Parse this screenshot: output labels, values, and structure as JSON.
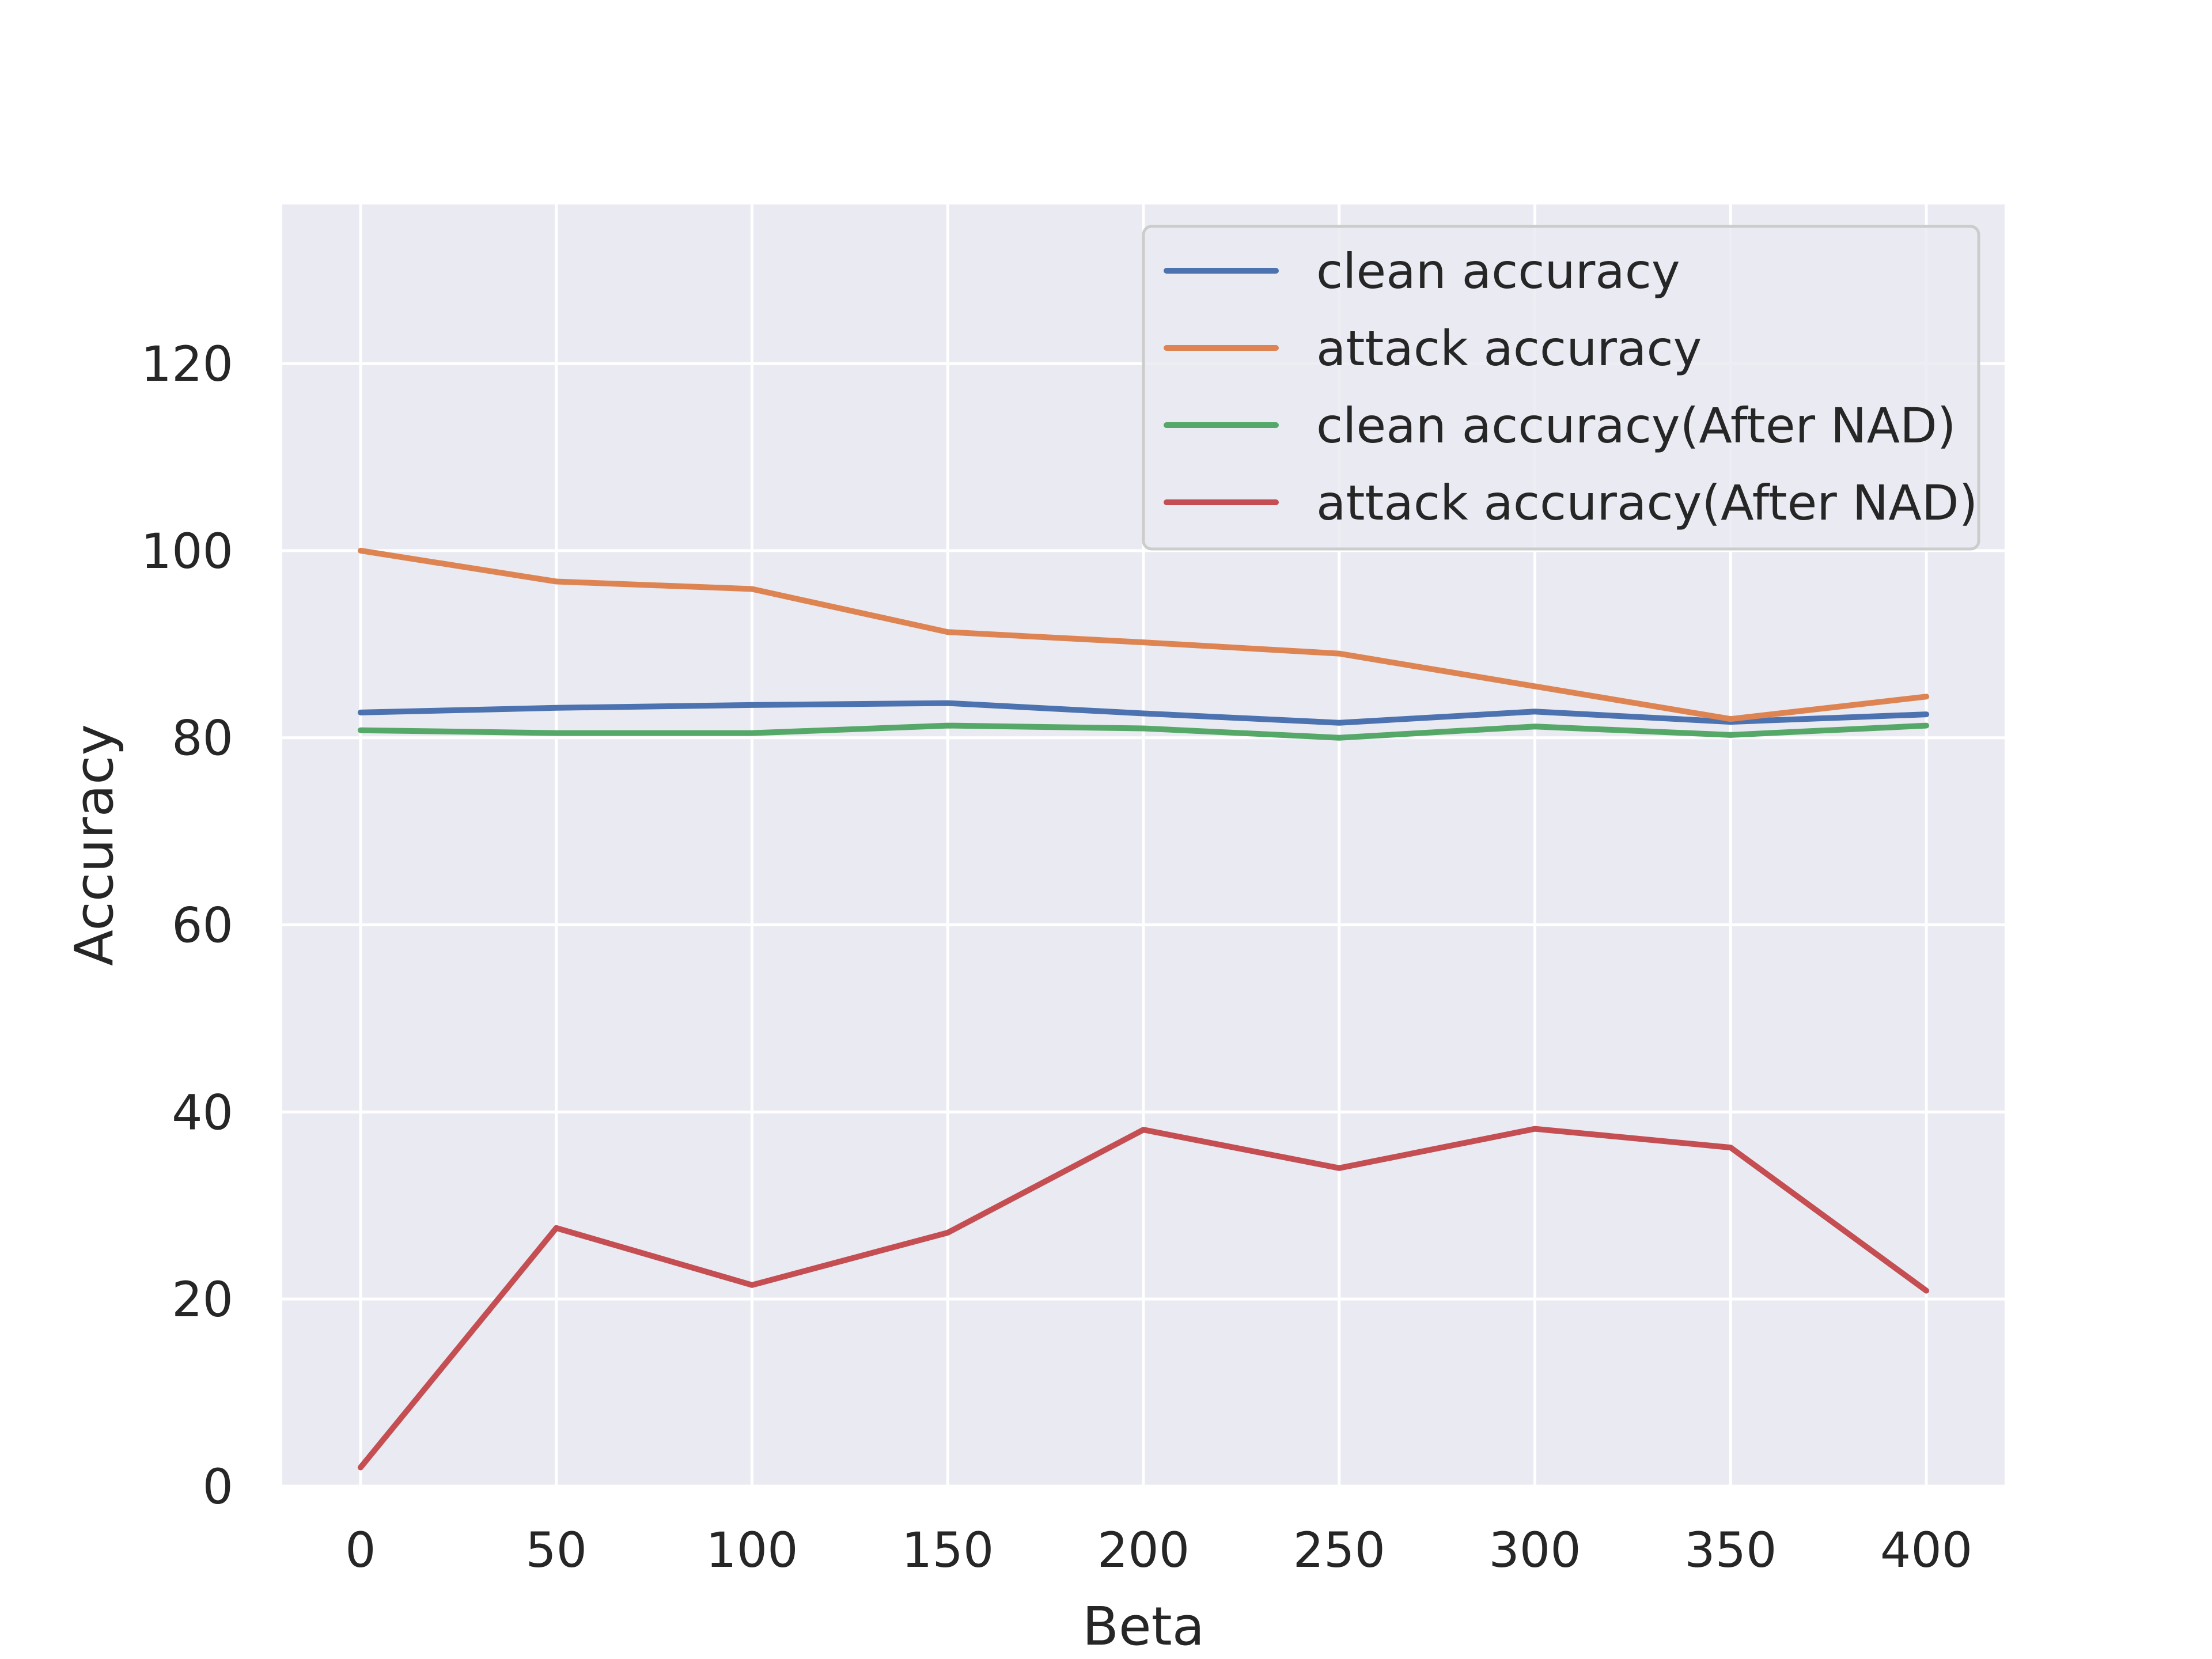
{
  "chart_data": {
    "type": "line",
    "xlabel": "Beta",
    "ylabel": "Accuracy",
    "x": [
      0,
      50,
      100,
      150,
      200,
      250,
      300,
      350,
      400
    ],
    "xlim": [
      -20,
      420
    ],
    "ylim": [
      0,
      137
    ],
    "xticks": [
      "0",
      "50",
      "100",
      "150",
      "200",
      "250",
      "300",
      "350",
      "400"
    ],
    "yticks": [
      "0",
      "20",
      "40",
      "60",
      "80",
      "100",
      "120"
    ],
    "grid": true,
    "legend_position": "top-right",
    "series": [
      {
        "name": "clean accuracy",
        "color": "#4c72b0",
        "values": [
          82.7,
          83.2,
          83.5,
          83.7,
          82.6,
          81.6,
          82.8,
          81.7,
          82.5
        ]
      },
      {
        "name": "attack accuracy",
        "color": "#dd8452",
        "values": [
          100.0,
          96.7,
          95.9,
          91.3,
          90.2,
          89.0,
          85.5,
          82.0,
          84.4
        ]
      },
      {
        "name": "clean accuracy(After NAD)",
        "color": "#55a868",
        "values": [
          80.8,
          80.5,
          80.5,
          81.3,
          81.0,
          80.0,
          81.2,
          80.3,
          81.3
        ]
      },
      {
        "name": "attack accuracy(After NAD)",
        "color": "#c44e52",
        "values": [
          2.0,
          27.6,
          21.5,
          27.1,
          38.1,
          34.0,
          38.2,
          36.2,
          20.9
        ]
      }
    ]
  }
}
